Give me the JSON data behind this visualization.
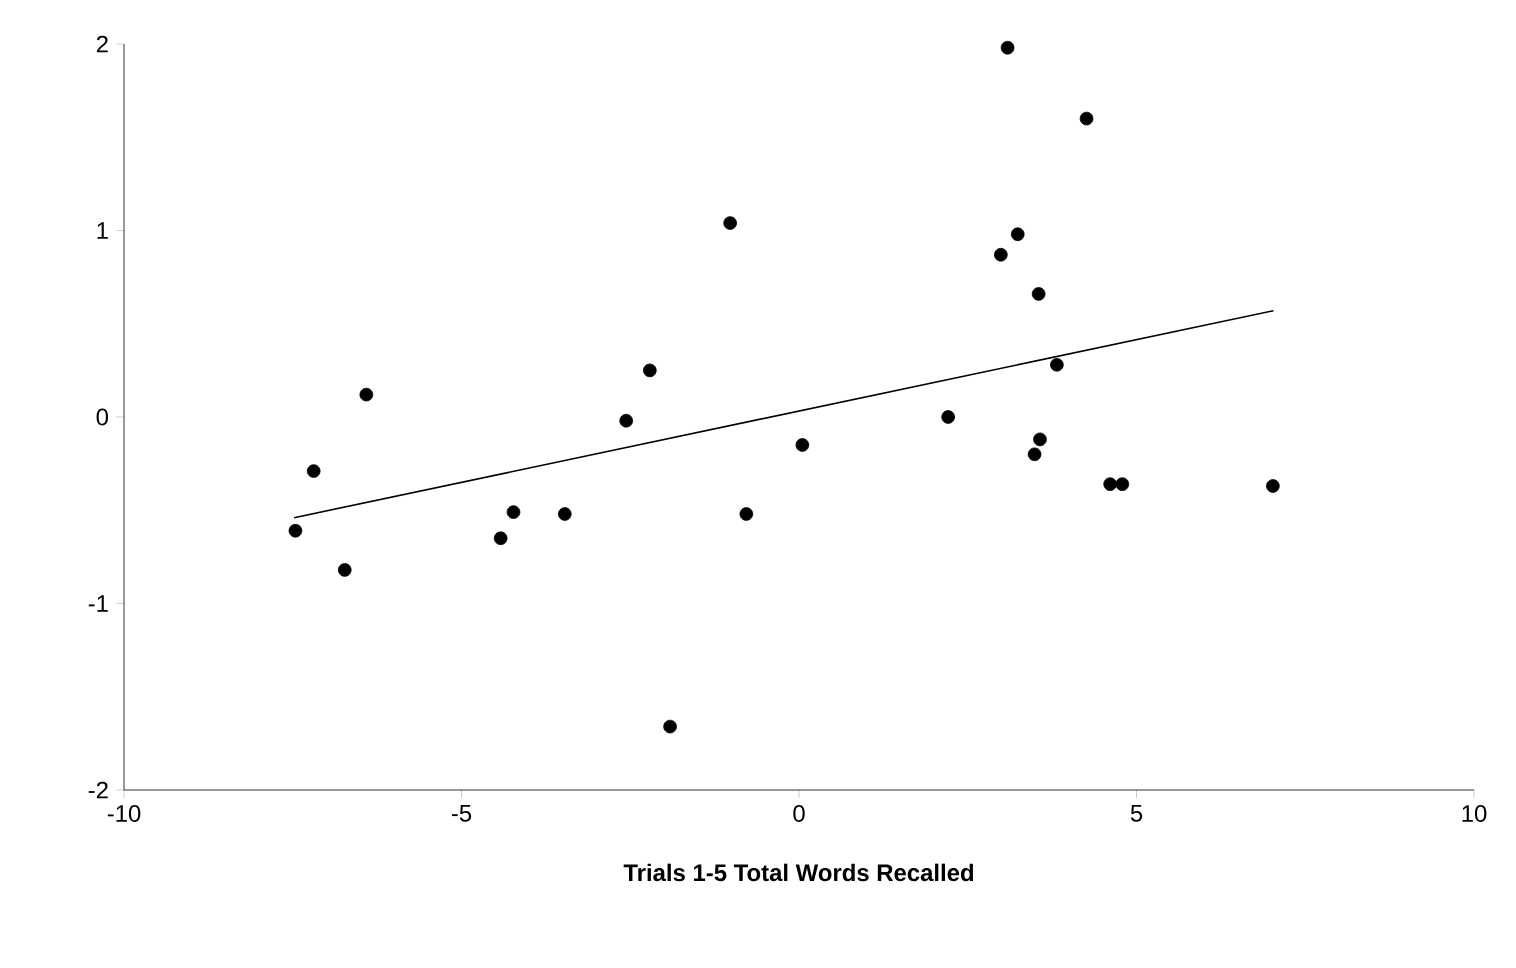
{
  "chart_data": {
    "type": "scatter",
    "xlabel": "Trials 1-5 Total Words Recalled",
    "xlim": [
      -10,
      10
    ],
    "xticks": [
      -10,
      -5,
      0,
      5,
      10
    ],
    "ylim": [
      -2,
      2
    ],
    "yticks": [
      -2,
      -1,
      0,
      1,
      2
    ],
    "grid": false,
    "series": [
      {
        "color": "#000000",
        "marker": "circle",
        "x": [
          -7.46,
          -7.19,
          -6.73,
          -6.41,
          -4.42,
          -4.23,
          -3.47,
          -2.56,
          -2.21,
          -1.91,
          -1.02,
          -0.78,
          0.05,
          3.09,
          4.26,
          3.24,
          2.99,
          3.55,
          3.82,
          2.21,
          3.57,
          3.49,
          4.61,
          4.79,
          7.02
        ],
        "values": [
          -0.61,
          -0.29,
          -0.82,
          0.12,
          -0.65,
          -0.51,
          -0.52,
          -0.02,
          0.25,
          -1.66,
          1.04,
          -0.52,
          -0.15,
          1.98,
          1.6,
          0.98,
          0.87,
          0.66,
          0.28,
          0.0,
          -0.12,
          -0.2,
          -0.36,
          -0.36,
          -0.37
        ]
      },
      {
        "type": "line",
        "color": "#000000",
        "marker": "none",
        "x": [
          -7.48,
          7.03
        ],
        "values": [
          -0.54,
          0.57
        ]
      }
    ]
  }
}
